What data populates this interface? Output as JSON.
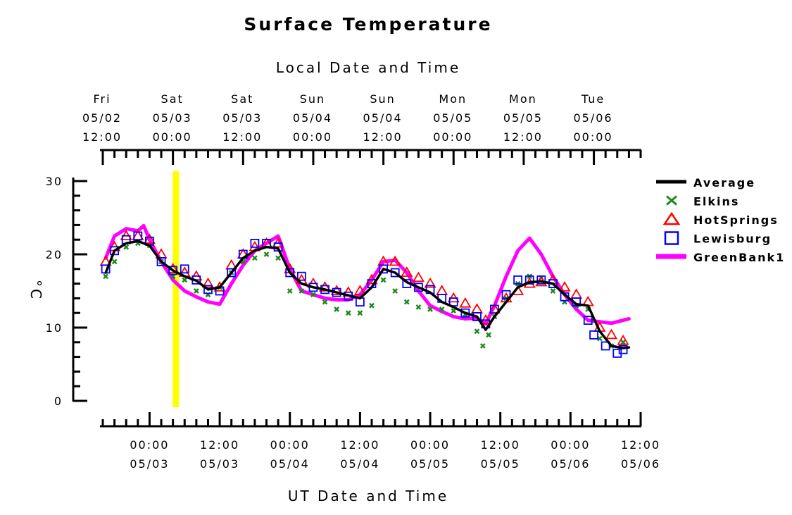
{
  "chart_data": {
    "type": "line",
    "title": "Surface Temperature",
    "top_axis_title": "Local Date and Time",
    "xlabel": "UT Date and Time",
    "ylabel": "°C",
    "ylim": [
      0,
      30
    ],
    "yticks": [
      "0",
      "10",
      "20",
      "30"
    ],
    "xlim_ut_hours": [
      -8,
      84
    ],
    "bottom_ticks": [
      {
        "hour": 0,
        "time": "00:00",
        "date": "05/03"
      },
      {
        "hour": 12,
        "time": "12:00",
        "date": "05/03"
      },
      {
        "hour": 24,
        "time": "00:00",
        "date": "05/04"
      },
      {
        "hour": 36,
        "time": "12:00",
        "date": "05/04"
      },
      {
        "hour": 48,
        "time": "00:00",
        "date": "05/05"
      },
      {
        "hour": 60,
        "time": "12:00",
        "date": "05/05"
      },
      {
        "hour": 72,
        "time": "00:00",
        "date": "05/06"
      },
      {
        "hour": 84,
        "time": "12:00",
        "date": "05/06"
      }
    ],
    "top_ticks": [
      {
        "hour": -8,
        "day": "Fri",
        "date": "05/02",
        "time": "12:00"
      },
      {
        "hour": 4,
        "day": "Sat",
        "date": "05/03",
        "time": "00:00"
      },
      {
        "hour": 16,
        "day": "Sat",
        "date": "05/03",
        "time": "12:00"
      },
      {
        "hour": 28,
        "day": "Sun",
        "date": "05/04",
        "time": "00:00"
      },
      {
        "hour": 40,
        "day": "Sun",
        "date": "05/04",
        "time": "12:00"
      },
      {
        "hour": 52,
        "day": "Mon",
        "date": "05/05",
        "time": "00:00"
      },
      {
        "hour": 64,
        "day": "Mon",
        "date": "05/05",
        "time": "12:00"
      },
      {
        "hour": 76,
        "day": "Tue",
        "date": "05/06",
        "time": "00:00"
      }
    ],
    "marker_line_hour": 4.5,
    "colors": {
      "Average": "#000000",
      "Elkins": "#1a8a1a",
      "HotSprings": "#ff0000",
      "Lewisburg": "#0000ff",
      "GreenBank1": "#ff00ff",
      "marker_line": "#ffff00"
    },
    "series": [
      {
        "name": "Average",
        "style": "line",
        "points": [
          [
            -7.5,
            17.5
          ],
          [
            -6,
            20.5
          ],
          [
            -4,
            21.5
          ],
          [
            -2,
            21.8
          ],
          [
            0,
            21.2
          ],
          [
            2,
            19
          ],
          [
            4,
            17.8
          ],
          [
            6,
            17
          ],
          [
            8,
            16.4
          ],
          [
            10,
            15.2
          ],
          [
            12,
            15.5
          ],
          [
            14,
            17.5
          ],
          [
            16,
            19.5
          ],
          [
            18,
            20.5
          ],
          [
            20,
            21
          ],
          [
            22,
            20.8
          ],
          [
            24,
            17.5
          ],
          [
            26,
            16
          ],
          [
            28,
            15.5
          ],
          [
            30,
            15.2
          ],
          [
            32,
            14.8
          ],
          [
            34,
            14.4
          ],
          [
            36,
            14
          ],
          [
            38,
            15.5
          ],
          [
            40,
            18
          ],
          [
            42,
            17.5
          ],
          [
            44,
            16.2
          ],
          [
            46,
            15.5
          ],
          [
            48,
            14.8
          ],
          [
            50,
            13.5
          ],
          [
            52,
            12.8
          ],
          [
            54,
            12
          ],
          [
            56,
            11.5
          ],
          [
            57.5,
            9.7
          ],
          [
            59,
            11.5
          ],
          [
            61,
            13.5
          ],
          [
            63,
            15.5
          ],
          [
            65,
            16.2
          ],
          [
            67,
            16.3
          ],
          [
            69,
            16
          ],
          [
            71,
            14.5
          ],
          [
            73,
            13.2
          ],
          [
            75,
            13
          ],
          [
            77,
            9.5
          ],
          [
            79,
            7.5
          ],
          [
            81,
            7.2
          ],
          [
            82,
            7.3
          ]
        ]
      },
      {
        "name": "Elkins",
        "style": "x",
        "points": [
          [
            -7.5,
            17
          ],
          [
            -6,
            19
          ],
          [
            -4,
            21
          ],
          [
            -2,
            21.5
          ],
          [
            0,
            21.2
          ],
          [
            2,
            19
          ],
          [
            4,
            17
          ],
          [
            6,
            16.5
          ],
          [
            8,
            15
          ],
          [
            10,
            14.5
          ],
          [
            12,
            15.5
          ],
          [
            14,
            17.5
          ],
          [
            16,
            19
          ],
          [
            18,
            19.5
          ],
          [
            20,
            20
          ],
          [
            22,
            19.5
          ],
          [
            24,
            15
          ],
          [
            26,
            15
          ],
          [
            28,
            14.5
          ],
          [
            30,
            13.5
          ],
          [
            32,
            12.5
          ],
          [
            34,
            12
          ],
          [
            36,
            12
          ],
          [
            38,
            13
          ],
          [
            40,
            16.5
          ],
          [
            42,
            15
          ],
          [
            44,
            13.5
          ],
          [
            46,
            12.8
          ],
          [
            48,
            12.5
          ],
          [
            50,
            12.5
          ],
          [
            52,
            12.3
          ],
          [
            54,
            11.8
          ],
          [
            56,
            9.5
          ],
          [
            57,
            7.5
          ],
          [
            58,
            9
          ],
          [
            59,
            11.5
          ],
          [
            61,
            14
          ],
          [
            63,
            16
          ],
          [
            65,
            17
          ],
          [
            67,
            16.8
          ],
          [
            69,
            15
          ],
          [
            71,
            13.5
          ],
          [
            73,
            13
          ],
          [
            75,
            12.5
          ],
          [
            77,
            8.5
          ],
          [
            79,
            7.5
          ],
          [
            81,
            8
          ]
        ]
      },
      {
        "name": "HotSprings",
        "style": "triangle",
        "points": [
          [
            -7.5,
            19
          ],
          [
            -6,
            21
          ],
          [
            -4,
            22.5
          ],
          [
            -2,
            22.5
          ],
          [
            0,
            22
          ],
          [
            2,
            20
          ],
          [
            4,
            18
          ],
          [
            6,
            17.5
          ],
          [
            8,
            17
          ],
          [
            10,
            16
          ],
          [
            12,
            15.5
          ],
          [
            14,
            18.5
          ],
          [
            16,
            20
          ],
          [
            18,
            21
          ],
          [
            20,
            21.5
          ],
          [
            22,
            21.5
          ],
          [
            24,
            18
          ],
          [
            26,
            16.5
          ],
          [
            28,
            16
          ],
          [
            30,
            15.5
          ],
          [
            32,
            15
          ],
          [
            34,
            14.8
          ],
          [
            36,
            15
          ],
          [
            38,
            16.5
          ],
          [
            40,
            19
          ],
          [
            42,
            19
          ],
          [
            44,
            17.5
          ],
          [
            46,
            16.8
          ],
          [
            48,
            16
          ],
          [
            50,
            15
          ],
          [
            52,
            14
          ],
          [
            54,
            13.3
          ],
          [
            56,
            12.5
          ],
          [
            57.5,
            11
          ],
          [
            59,
            12.5
          ],
          [
            61,
            14
          ],
          [
            63,
            15
          ],
          [
            65,
            16
          ],
          [
            67,
            16.2
          ],
          [
            69,
            16.5
          ],
          [
            71,
            15.5
          ],
          [
            73,
            14.5
          ],
          [
            75,
            13.5
          ],
          [
            77,
            10
          ],
          [
            79,
            9
          ],
          [
            81,
            8.2
          ]
        ]
      },
      {
        "name": "Lewisburg",
        "style": "square",
        "points": [
          [
            -7.5,
            18
          ],
          [
            -6,
            20.5
          ],
          [
            -4,
            22
          ],
          [
            -2,
            22.5
          ],
          [
            0,
            21.8
          ],
          [
            2,
            19
          ],
          [
            4,
            17.8
          ],
          [
            6,
            18
          ],
          [
            8,
            16.5
          ],
          [
            10,
            15.2
          ],
          [
            12,
            15
          ],
          [
            14,
            17.5
          ],
          [
            16,
            20
          ],
          [
            18,
            21.5
          ],
          [
            20,
            21.5
          ],
          [
            22,
            21
          ],
          [
            24,
            17.5
          ],
          [
            26,
            17
          ],
          [
            28,
            15.5
          ],
          [
            30,
            15.2
          ],
          [
            32,
            14.8
          ],
          [
            34,
            14.3
          ],
          [
            36,
            13.5
          ],
          [
            38,
            16
          ],
          [
            40,
            18
          ],
          [
            42,
            17.5
          ],
          [
            44,
            16
          ],
          [
            46,
            15.5
          ],
          [
            48,
            15.2
          ],
          [
            50,
            14
          ],
          [
            52,
            13.5
          ],
          [
            54,
            12
          ],
          [
            56,
            11.5
          ],
          [
            57.5,
            10.5
          ],
          [
            59,
            12.5
          ],
          [
            61,
            14.5
          ],
          [
            63,
            16.5
          ],
          [
            65,
            16.5
          ],
          [
            67,
            16.5
          ],
          [
            69,
            16
          ],
          [
            71,
            14.2
          ],
          [
            73,
            13.5
          ],
          [
            75,
            11
          ],
          [
            76,
            9
          ],
          [
            78,
            7.5
          ],
          [
            80,
            6.5
          ],
          [
            81,
            7
          ]
        ]
      },
      {
        "name": "GreenBank1",
        "style": "line",
        "points": [
          [
            -7.5,
            19.5
          ],
          [
            -6,
            22.5
          ],
          [
            -4,
            23.5
          ],
          [
            -2,
            23.2
          ],
          [
            -1,
            23.9
          ],
          [
            0,
            22
          ],
          [
            2,
            19
          ],
          [
            4,
            16.5
          ],
          [
            6,
            15
          ],
          [
            8,
            14.2
          ],
          [
            10,
            13.5
          ],
          [
            12,
            13.2
          ],
          [
            14,
            16
          ],
          [
            16,
            18.5
          ],
          [
            18,
            20.5
          ],
          [
            20,
            21.5
          ],
          [
            22,
            22.5
          ],
          [
            24,
            18
          ],
          [
            26,
            15
          ],
          [
            28,
            14.5
          ],
          [
            30,
            14
          ],
          [
            32,
            13.8
          ],
          [
            34,
            13.8
          ],
          [
            36,
            14.5
          ],
          [
            38,
            16.5
          ],
          [
            40,
            19
          ],
          [
            42,
            19.2
          ],
          [
            44,
            17.5
          ],
          [
            46,
            15
          ],
          [
            48,
            13
          ],
          [
            50,
            12.2
          ],
          [
            52,
            11.5
          ],
          [
            54,
            11.2
          ],
          [
            56,
            11.3
          ],
          [
            57.5,
            10.5
          ],
          [
            59,
            13
          ],
          [
            61,
            17
          ],
          [
            63,
            20.5
          ],
          [
            65,
            22.2
          ],
          [
            67,
            20
          ],
          [
            69,
            17
          ],
          [
            71,
            14.5
          ],
          [
            73,
            12.5
          ],
          [
            75,
            11
          ],
          [
            77,
            10.8
          ],
          [
            79,
            10.6
          ],
          [
            81,
            11
          ],
          [
            82,
            11.2
          ]
        ]
      }
    ]
  }
}
